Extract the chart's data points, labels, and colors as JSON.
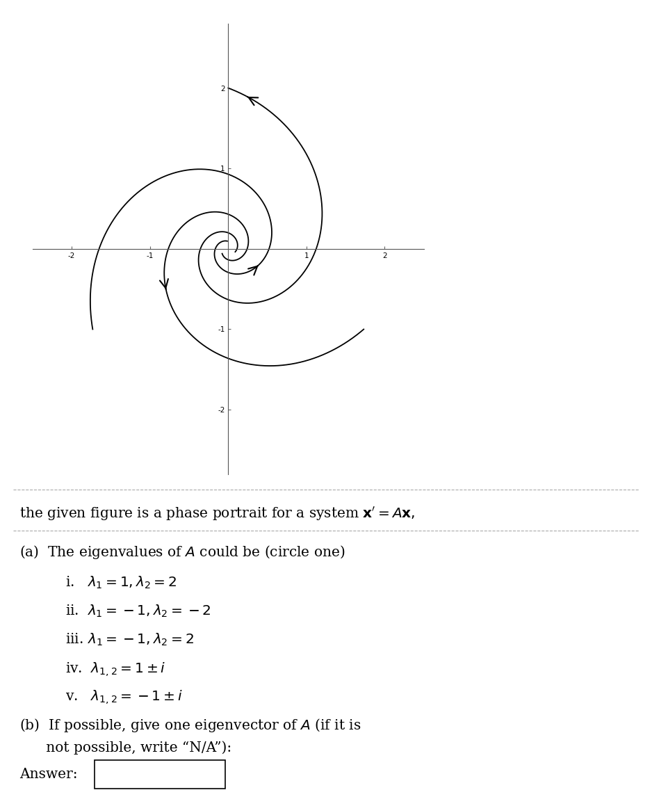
{
  "xlim": [
    -2.5,
    2.5
  ],
  "ylim": [
    -2.8,
    2.8
  ],
  "xticks": [
    -2,
    -1,
    1,
    2
  ],
  "yticks": [
    -2,
    -1,
    1,
    2
  ],
  "background_color": "#ffffff",
  "spiral_color": "#000000",
  "alpha": 0.55,
  "omega": 1.5,
  "title_text": "the given figure is a phase portrait for a system $\\mathbf{x}' = A\\mathbf{x},$",
  "part_a_text": "(a)  The eigenvalues of $A$ could be (circle one)",
  "options": [
    "i.   $\\lambda_1 = 1, \\lambda_2 = 2$",
    "ii.  $\\lambda_1 = -1, \\lambda_2 = -2$",
    "iii. $\\lambda_1 = -1, \\lambda_2 = 2$",
    "iv.  $\\lambda_{1,2} = 1 \\pm i$",
    "v.   $\\lambda_{1,2} = -1 \\pm i$"
  ],
  "part_b_text": "(b)  If possible, give one eigenvector of $A$ (if it is\n      not possible, write “N/A”):",
  "answer_label": "Answer:"
}
